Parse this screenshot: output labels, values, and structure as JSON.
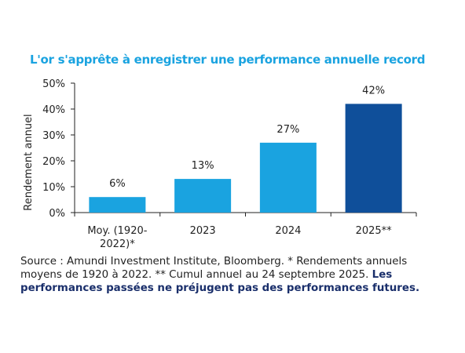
{
  "chart_data": {
    "type": "bar",
    "title": "L'or s'apprête à enregistrer une performance annuelle record",
    "xlabel": "",
    "ylabel": "Rendement annuel",
    "categories": [
      "Moy. (1920-2022)*",
      "2023",
      "2024",
      "2025**"
    ],
    "category_lines": [
      [
        "Moy. (1920-",
        "2022)*"
      ],
      [
        "2023"
      ],
      [
        "2024"
      ],
      [
        "2025**"
      ]
    ],
    "values": [
      6,
      13,
      27,
      42
    ],
    "data_labels": [
      "6%",
      "13%",
      "27%",
      "42%"
    ],
    "bar_colors": [
      "#1aa3e0",
      "#1aa3e0",
      "#1aa3e0",
      "#0f4f9a"
    ],
    "ylim": [
      0,
      50
    ],
    "yticks": [
      0,
      10,
      20,
      30,
      40,
      50
    ],
    "ytick_labels": [
      "0%",
      "10%",
      "20%",
      "30%",
      "40%",
      "50%"
    ],
    "grid": false,
    "legend": "none"
  },
  "source": {
    "text": "Source : Amundi Investment Institute, Bloomberg. * Rendements annuels moyens de 1920 à 2022. ** Cumul annuel au 24 septembre 2025. ",
    "disclaimer": "Les performances passées ne préjugent pas des performances futures."
  },
  "colors": {
    "title": "#1aa3e0",
    "axis": "#222222",
    "disclaimer": "#1a2f6b"
  }
}
